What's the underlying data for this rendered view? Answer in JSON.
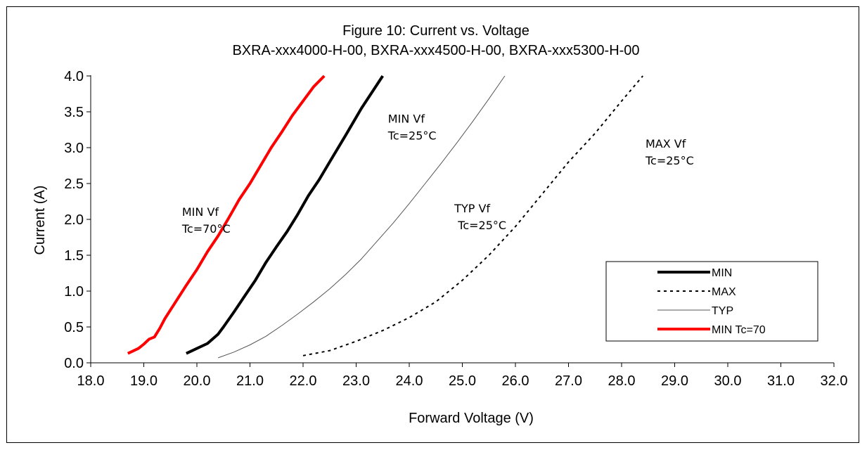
{
  "chart_data": {
    "type": "line",
    "title": "Figure 10:  Current vs. Voltage",
    "subtitle": "BXRA-xxx4000-H-00, BXRA-xxx4500-H-00, BXRA-xxx5300-H-00",
    "xlabel": "Forward Voltage (V)",
    "ylabel": "Current  (A)",
    "xlim": [
      18.0,
      32.0
    ],
    "ylim": [
      0.0,
      4.0
    ],
    "xticks": [
      "18.0",
      "19.0",
      "20.0",
      "21.0",
      "22.0",
      "23.0",
      "24.0",
      "25.0",
      "26.0",
      "27.0",
      "28.0",
      "29.0",
      "30.0",
      "31.0",
      "32.0"
    ],
    "yticks": [
      "0.0",
      "0.5",
      "1.0",
      "1.5",
      "2.0",
      "2.5",
      "3.0",
      "3.5",
      "4.0"
    ],
    "grid": false,
    "legend_position": "bottom-right",
    "series": [
      {
        "name": "MIN",
        "color": "#000000",
        "style": "solid-thick",
        "x": [
          19.8,
          20.0,
          20.2,
          20.4,
          20.5,
          20.7,
          20.9,
          21.1,
          21.3,
          21.5,
          21.7,
          21.9,
          22.1,
          22.3,
          22.5,
          22.8,
          23.1,
          23.5
        ],
        "y": [
          0.13,
          0.2,
          0.27,
          0.4,
          0.5,
          0.71,
          0.93,
          1.15,
          1.4,
          1.62,
          1.83,
          2.07,
          2.33,
          2.55,
          2.8,
          3.17,
          3.55,
          4.0
        ]
      },
      {
        "name": "MAX",
        "color": "#000000",
        "style": "dotted",
        "x": [
          22.0,
          22.5,
          23.0,
          23.5,
          24.0,
          24.5,
          25.0,
          25.5,
          26.0,
          26.5,
          27.0,
          27.5,
          28.0,
          28.4
        ],
        "y": [
          0.1,
          0.17,
          0.3,
          0.45,
          0.63,
          0.85,
          1.15,
          1.5,
          1.9,
          2.35,
          2.8,
          3.2,
          3.65,
          4.0
        ]
      },
      {
        "name": "TYP",
        "color": "#555555",
        "style": "thin",
        "x": [
          20.4,
          20.7,
          21.0,
          21.3,
          21.6,
          21.9,
          22.2,
          22.5,
          22.8,
          23.1,
          23.4,
          23.7,
          24.0,
          24.3,
          24.6,
          24.9,
          25.2,
          25.5,
          25.8
        ],
        "y": [
          0.07,
          0.15,
          0.25,
          0.37,
          0.52,
          0.68,
          0.85,
          1.03,
          1.23,
          1.45,
          1.7,
          1.95,
          2.22,
          2.5,
          2.78,
          3.07,
          3.37,
          3.68,
          4.0
        ]
      },
      {
        "name": "MIN Tc=70",
        "color": "#ff0000",
        "style": "solid-thick",
        "x": [
          18.7,
          18.9,
          19.0,
          19.1,
          19.2,
          19.3,
          19.4,
          19.6,
          19.8,
          20.0,
          20.2,
          20.4,
          20.6,
          20.8,
          21.0,
          21.2,
          21.4,
          21.6,
          21.8,
          22.0,
          22.2,
          22.4
        ],
        "y": [
          0.13,
          0.2,
          0.26,
          0.33,
          0.36,
          0.48,
          0.62,
          0.85,
          1.08,
          1.3,
          1.55,
          1.77,
          2.02,
          2.28,
          2.5,
          2.75,
          3.0,
          3.22,
          3.45,
          3.65,
          3.85,
          4.0
        ]
      }
    ],
    "annotations": [
      {
        "id": "min70",
        "lines": [
          "MIN Vf",
          "Tc=70°C"
        ],
        "x": 19.72,
        "y": 2.05
      },
      {
        "id": "min25",
        "lines": [
          "MIN Vf",
          "Tc=25°C"
        ],
        "x": 23.6,
        "y": 3.35
      },
      {
        "id": "typ25",
        "lines": [
          "TYP Vf",
          " Tc=25°C"
        ],
        "x": 24.85,
        "y": 2.1
      },
      {
        "id": "max25",
        "lines": [
          "MAX Vf",
          "Tc=25°C"
        ],
        "x": 28.45,
        "y": 3.0
      }
    ]
  }
}
